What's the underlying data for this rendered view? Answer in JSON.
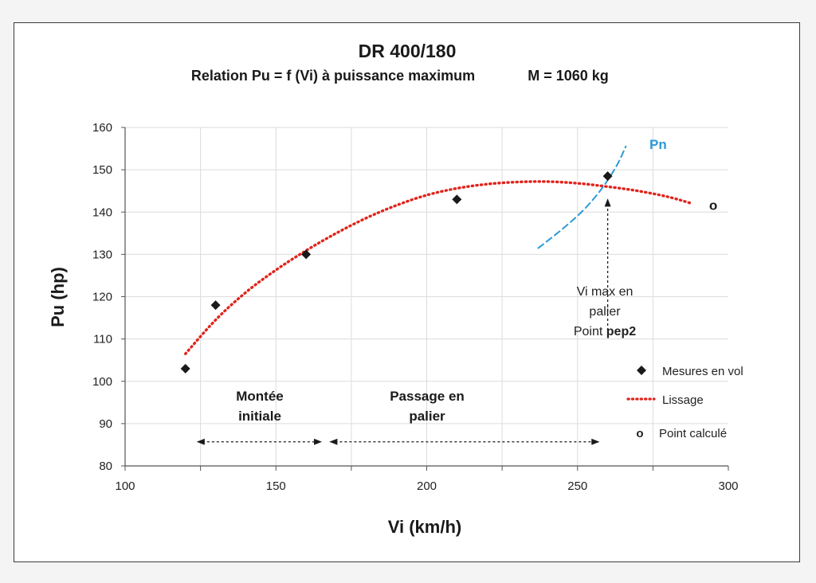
{
  "chart_data": {
    "type": "scatter",
    "title": "DR 400/180",
    "subtitle": "Relation Pu = f (Vi) à puissance maximum",
    "subtitle_mass": "M = 1060 kg",
    "xlabel": "Vi (km/h)",
    "ylabel": "Pu (hp)",
    "xlim": [
      100,
      300
    ],
    "ylim": [
      80,
      160
    ],
    "xticks": [
      100,
      150,
      200,
      250,
      300
    ],
    "yticks": [
      80,
      90,
      100,
      110,
      120,
      130,
      140,
      150,
      160
    ],
    "grid": true,
    "legend_placement": "bottom-right",
    "series": [
      {
        "name": "Mesures en vol",
        "kind": "markers",
        "marker": "diamond",
        "color": "#1a1a1a",
        "x": [
          120,
          130,
          160,
          210,
          260
        ],
        "y": [
          103,
          118,
          130,
          143,
          148.5
        ]
      },
      {
        "name": "Lissage",
        "kind": "dotted-line",
        "color": "#e0241c",
        "x": [
          120,
          130,
          140,
          150,
          160,
          170,
          180,
          190,
          200,
          210,
          220,
          230,
          240,
          250,
          260,
          270,
          280,
          288
        ],
        "y": [
          106.5,
          114.5,
          121.0,
          126.3,
          130.9,
          135.0,
          138.6,
          141.6,
          144.0,
          145.6,
          146.6,
          147.1,
          147.2,
          146.8,
          146.0,
          145.0,
          143.6,
          142.0
        ]
      },
      {
        "name": "Point calculé",
        "kind": "marker-text",
        "glyph": "o",
        "color": "#1a1a1a",
        "x": [
          295
        ],
        "y": [
          141.5
        ]
      },
      {
        "name": "Pn",
        "kind": "dashed-line",
        "color": "#2a9ad6",
        "x": [
          237,
          245,
          252,
          258,
          263,
          266
        ],
        "y": [
          131.5,
          136.0,
          140.5,
          145.5,
          151.0,
          155.5
        ]
      }
    ],
    "annotations": {
      "pn_label": "Pn",
      "vimax_line1": "Vi max en",
      "vimax_line2": "palier",
      "vimax_line3_prefix": "Point ",
      "vimax_line3_bold": "pep2",
      "vimax_arrow": {
        "x": 260,
        "y_from": 112,
        "y_to": 143
      },
      "phase1_line1": "Montée",
      "phase1_line2": "initiale",
      "phase1_range": [
        124,
        165
      ],
      "phase2_line1": "Passage en",
      "phase2_line2": "palier",
      "phase2_range": [
        168,
        257
      ],
      "phase_arrow_y": 85.7
    },
    "legend": {
      "measures_label": "Mesures en vol",
      "smoothing_label": "Lissage",
      "computed_glyph": "o",
      "computed_label": "Point calculé"
    }
  },
  "colors": {
    "grid": "#dcdcdc",
    "axis": "#555555",
    "markers": "#1a1a1a",
    "smoothing": "#e0241c",
    "pn_curve": "#2a9ad6"
  }
}
